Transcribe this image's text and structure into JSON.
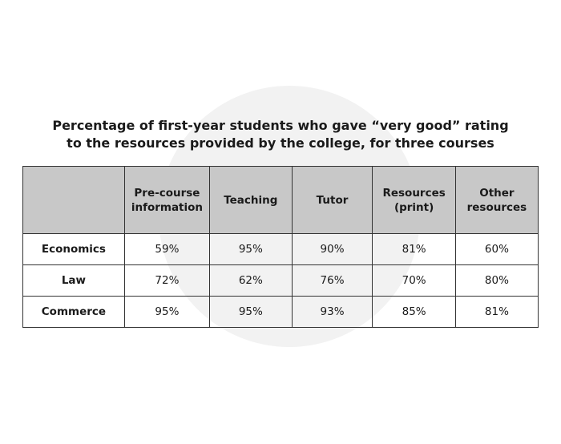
{
  "title": {
    "lines": [
      "Percentage of first-year students who gave “very good” rating",
      "to the resources provided by the college, for three courses"
    ]
  },
  "table": {
    "header": [
      "",
      "Pre-course information",
      "Teaching",
      "Tutor",
      "Resources (print)",
      "Other resources"
    ],
    "rows": [
      [
        "Economics",
        "59%",
        "95%",
        "90%",
        "81%",
        "60%"
      ],
      [
        "Law",
        "72%",
        "62%",
        "76%",
        "70%",
        "80%"
      ],
      [
        "Commerce",
        "95%",
        "95%",
        "93%",
        "85%",
        "81%"
      ]
    ]
  }
}
